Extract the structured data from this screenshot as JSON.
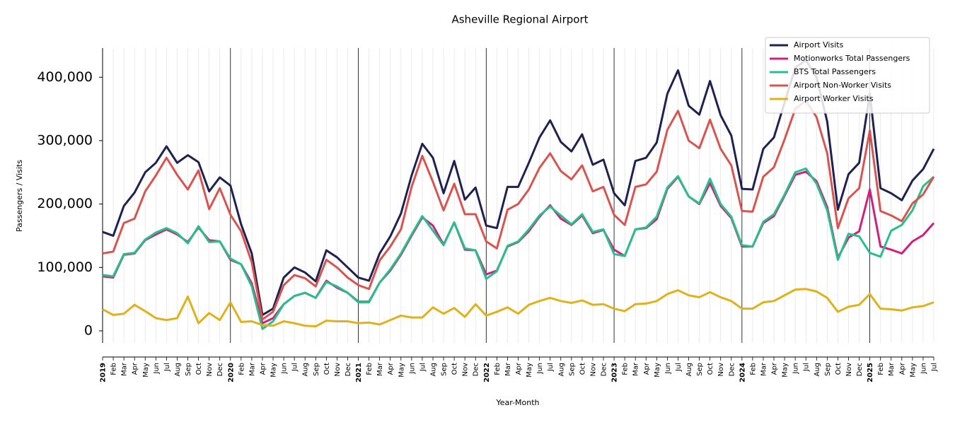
{
  "chart_data": {
    "type": "line",
    "title": "Asheville Regional Airport",
    "xlabel": "Year-Month",
    "ylabel": "Passengers / Visits",
    "categories": [
      "2019",
      "Feb",
      "Mar",
      "Apr",
      "May",
      "Jun",
      "Jul",
      "Aug",
      "Sep",
      "Oct",
      "Nov",
      "Dec",
      "2020",
      "Feb",
      "Mar",
      "Apr",
      "May",
      "Jun",
      "Jul",
      "Aug",
      "Sep",
      "Oct",
      "Nov",
      "Dec",
      "2021",
      "Feb",
      "Mar",
      "Apr",
      "May",
      "Jun",
      "Jul",
      "Aug",
      "Sep",
      "Oct",
      "Nov",
      "Dec",
      "2022",
      "Feb",
      "Mar",
      "Apr",
      "May",
      "Jun",
      "Jul",
      "Aug",
      "Sep",
      "Oct",
      "Nov",
      "Dec",
      "2023",
      "Feb",
      "Mar",
      "Apr",
      "May",
      "Jun",
      "Jul",
      "Aug",
      "Sep",
      "Oct",
      "Nov",
      "Dec",
      "2024",
      "Feb",
      "Mar",
      "Apr",
      "May",
      "Jun",
      "Jul",
      "Aug",
      "Sep",
      "Oct",
      "Nov",
      "Dec",
      "2025",
      "Feb",
      "Mar",
      "Apr",
      "May",
      "Jun",
      "Jul"
    ],
    "series": [
      {
        "name": "Airport Visits",
        "color": "#1f2150",
        "values": [
          156000,
          150000,
          197000,
          218000,
          250000,
          265000,
          291000,
          265000,
          277000,
          266000,
          220000,
          242000,
          229000,
          168000,
          122000,
          25000,
          35000,
          84000,
          100000,
          92000,
          78000,
          127000,
          116000,
          100000,
          84000,
          79000,
          122000,
          149000,
          185000,
          245000,
          295000,
          273000,
          217000,
          268000,
          207000,
          226000,
          166000,
          162000,
          227000,
          227000,
          265000,
          305000,
          332000,
          298000,
          283000,
          310000,
          262000,
          270000,
          217000,
          198000,
          268000,
          273000,
          297000,
          374000,
          411000,
          355000,
          341000,
          394000,
          340000,
          308000,
          224000,
          223000,
          287000,
          305000,
          360000,
          415000,
          427000,
          400000,
          330000,
          191000,
          247000,
          265000,
          374000,
          225000,
          217000,
          206000,
          237000,
          255000,
          287000
        ]
      },
      {
        "name": "Motionworks Total Passengers",
        "color": "#d0207f",
        "values": [
          86000,
          84000,
          120000,
          122000,
          143000,
          152000,
          160000,
          152000,
          140000,
          163000,
          143000,
          141000,
          112000,
          105000,
          75000,
          12000,
          20000,
          42000,
          55000,
          60000,
          52000,
          79000,
          68000,
          60000,
          46000,
          46000,
          76000,
          95000,
          120000,
          150000,
          179000,
          166000,
          136000,
          171000,
          128000,
          127000,
          89000,
          95000,
          133000,
          140000,
          157000,
          180000,
          198000,
          177000,
          167000,
          182000,
          154000,
          159000,
          128000,
          118000,
          160000,
          162000,
          176000,
          224000,
          243000,
          212000,
          200000,
          233000,
          197000,
          178000,
          133000,
          133000,
          170000,
          181000,
          213000,
          246000,
          251000,
          236000,
          195000,
          115000,
          147000,
          157000,
          223000,
          133000,
          128000,
          122000,
          141000,
          151000,
          170000
        ]
      },
      {
        "name": "BTS Total Passengers",
        "color": "#27c08a",
        "values": [
          88000,
          86000,
          121000,
          123000,
          144000,
          155000,
          162000,
          154000,
          138000,
          165000,
          140000,
          141000,
          114000,
          105000,
          70000,
          3000,
          15000,
          42000,
          55000,
          60000,
          52000,
          77000,
          70000,
          60000,
          45000,
          45000,
          76000,
          97000,
          122000,
          152000,
          181000,
          158000,
          135000,
          171000,
          130000,
          127000,
          82000,
          94000,
          134000,
          141000,
          160000,
          182000,
          196000,
          182000,
          168000,
          184000,
          156000,
          160000,
          121000,
          118000,
          160000,
          163000,
          180000,
          226000,
          244000,
          212000,
          201000,
          240000,
          200000,
          180000,
          135000,
          133000,
          172000,
          184000,
          215000,
          250000,
          256000,
          232000,
          190000,
          112000,
          153000,
          149000,
          123000,
          117000,
          158000,
          167000,
          190000,
          228000,
          243000
        ]
      },
      {
        "name": "Airport Non-Worker Visits",
        "color": "#d9534f",
        "values": [
          122000,
          125000,
          170000,
          177000,
          220000,
          245000,
          273000,
          246000,
          223000,
          253000,
          192000,
          225000,
          183000,
          157000,
          108000,
          18000,
          30000,
          72000,
          88000,
          83000,
          70000,
          112000,
          100000,
          84000,
          72000,
          66000,
          111000,
          133000,
          160000,
          227000,
          276000,
          235000,
          190000,
          232000,
          184000,
          184000,
          141000,
          130000,
          191000,
          200000,
          223000,
          257000,
          280000,
          252000,
          239000,
          261000,
          220000,
          227000,
          183000,
          167000,
          227000,
          231000,
          251000,
          317000,
          347000,
          300000,
          288000,
          333000,
          287000,
          261000,
          189000,
          188000,
          243000,
          258000,
          302000,
          350000,
          363000,
          337000,
          280000,
          162000,
          209000,
          225000,
          316000,
          189000,
          182000,
          173000,
          201000,
          215000,
          243000
        ]
      },
      {
        "name": "Airport Worker Visits",
        "color": "#e0b21a",
        "values": [
          34000,
          25000,
          27000,
          41000,
          31000,
          20000,
          17000,
          20000,
          54000,
          12000,
          28000,
          17000,
          45000,
          14000,
          15000,
          9000,
          8000,
          15000,
          12000,
          8000,
          7000,
          16000,
          15000,
          15000,
          12000,
          13000,
          10000,
          17000,
          24000,
          21000,
          21000,
          37000,
          27000,
          36000,
          22000,
          42000,
          24000,
          30000,
          37000,
          27000,
          41000,
          47000,
          52000,
          47000,
          44000,
          48000,
          41000,
          42000,
          35000,
          31000,
          42000,
          43000,
          47000,
          58000,
          64000,
          56000,
          53000,
          61000,
          53000,
          47000,
          35000,
          35000,
          45000,
          47000,
          56000,
          65000,
          66000,
          62000,
          52000,
          30000,
          38000,
          41000,
          58000,
          35000,
          34000,
          32000,
          37000,
          39000,
          45000
        ]
      }
    ],
    "ylim": [
      -19000,
      446000
    ],
    "yticks": [
      0,
      {
        "value": 100000,
        "label": "100,000"
      },
      {
        "value": 200000,
        "label": "200,000"
      },
      {
        "value": 300000,
        "label": "300,000"
      },
      {
        "value": 400000,
        "label": "400,000"
      }
    ],
    "grid": true,
    "legend": "upper right"
  }
}
